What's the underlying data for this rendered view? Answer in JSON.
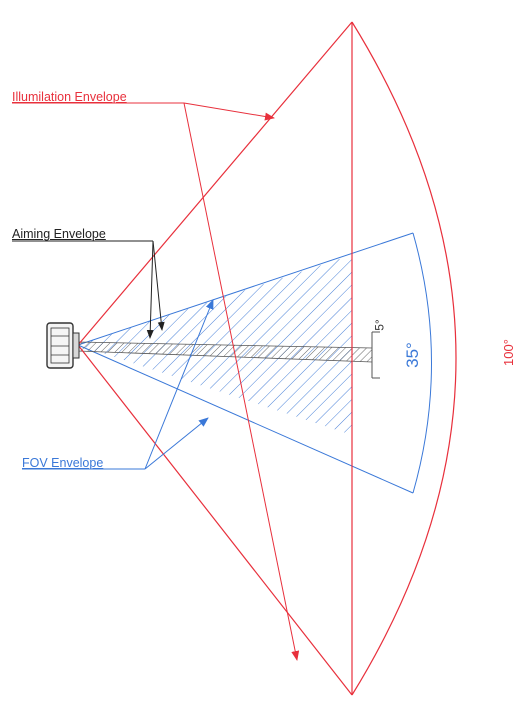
{
  "labels": {
    "illumination": "Illumilation Envelope",
    "aiming": "Aiming Envelope",
    "fov": "FOV Envelope"
  },
  "angles": {
    "fov": "35°",
    "illumination": "100°",
    "aiming": "5°"
  },
  "colors": {
    "illumination": "#e8303c",
    "fov": "#3a78d8",
    "aiming": "#4a4a4a",
    "device": "#333333"
  }
}
